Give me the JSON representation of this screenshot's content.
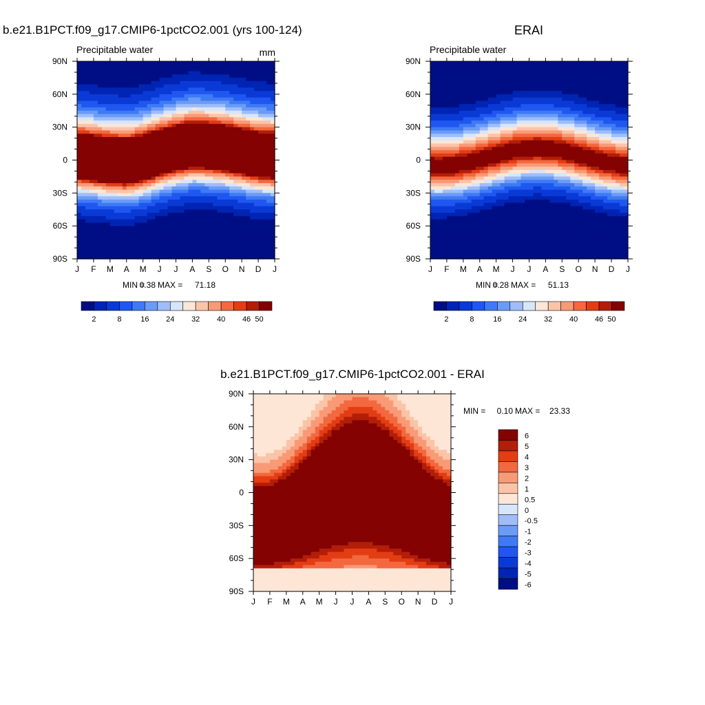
{
  "chart_data": [
    {
      "type": "heatmap",
      "id": "model",
      "title": "b.e21.B1PCT.f09_g17.CMIP6-1pctCO2.001 (yrs 100-124)",
      "left_label": "Precipitable water",
      "units": "mm",
      "x_tick_labels": [
        "J",
        "F",
        "M",
        "A",
        "M",
        "J",
        "J",
        "A",
        "S",
        "O",
        "N",
        "D",
        "J"
      ],
      "y_tick_labels": [
        "90N",
        "60N",
        "30N",
        "0",
        "30S",
        "60S",
        "90S"
      ],
      "ylim": [
        -90,
        90
      ],
      "stats": {
        "min_label": "MIN =",
        "min": "0.38",
        "max_label": "MAX =",
        "max": "71.18"
      },
      "contour_levels": [
        2,
        4,
        8,
        12,
        16,
        20,
        24,
        28,
        32,
        36,
        40,
        44,
        46,
        48,
        50
      ],
      "colorbar_labels": [
        "2",
        "8",
        "16",
        "24",
        "32",
        "40",
        "46",
        "50"
      ],
      "features": {
        "equator_max_lat_by_month": [
          2,
          0,
          -2,
          -3,
          0,
          5,
          9,
          12,
          11,
          9,
          6,
          3,
          2
        ],
        "tropical_peak": 71.18,
        "polar_min": 0.38
      }
    },
    {
      "type": "heatmap",
      "id": "obs",
      "title": "ERAI",
      "left_label": "Precipitable water",
      "x_tick_labels": [
        "J",
        "F",
        "M",
        "A",
        "M",
        "J",
        "J",
        "A",
        "S",
        "O",
        "N",
        "D",
        "J"
      ],
      "y_tick_labels": [
        "90N",
        "60N",
        "30N",
        "0",
        "30S",
        "60S",
        "90S"
      ],
      "ylim": [
        -90,
        90
      ],
      "stats": {
        "min_label": "MIN =",
        "min": "0.28",
        "max_label": "MAX =",
        "max": "51.13"
      },
      "contour_levels": [
        2,
        4,
        8,
        12,
        16,
        20,
        24,
        28,
        32,
        36,
        40,
        44,
        46,
        48,
        50
      ],
      "colorbar_labels": [
        "2",
        "8",
        "16",
        "24",
        "32",
        "40",
        "46",
        "50"
      ],
      "features": {
        "tropical_peak": 51.13,
        "polar_min": 0.28
      }
    },
    {
      "type": "heatmap",
      "id": "diff",
      "title": "b.e21.B1PCT.f09_g17.CMIP6-1pctCO2.001 - ERAI",
      "x_tick_labels": [
        "J",
        "F",
        "M",
        "A",
        "M",
        "J",
        "J",
        "A",
        "S",
        "O",
        "N",
        "D",
        "J"
      ],
      "y_tick_labels": [
        "90N",
        "60N",
        "30N",
        "0",
        "30S",
        "60S",
        "90S"
      ],
      "ylim": [
        -90,
        90
      ],
      "stats": {
        "min_label": "MIN =",
        "min": "0.10",
        "max_label": "MAX =",
        "max": "23.33"
      },
      "contour_levels": [
        -6,
        -5,
        -4,
        -3,
        -2,
        -1,
        -0.5,
        0,
        0.5,
        1,
        2,
        3,
        4,
        5,
        6
      ],
      "colorbar_labels": [
        "6",
        "5",
        "4",
        "3",
        "2",
        "1",
        "0.5",
        "0",
        "-0.5",
        "-1",
        "-2",
        "-3",
        "-4",
        "-5",
        "-6"
      ]
    }
  ],
  "colors": {
    "ramp": [
      "#000e85",
      "#0024b3",
      "#0a3ad6",
      "#1f57f0",
      "#3f7af5",
      "#6a9bf7",
      "#a0bdf9",
      "#d6e6fb",
      "#fde6d6",
      "#fbc4a8",
      "#f99a76",
      "#f3683f",
      "#e33d14",
      "#b21e08",
      "#840202"
    ],
    "diff_ramp": [
      "#000e85",
      "#0024b3",
      "#0a3ad6",
      "#1f57f0",
      "#3f7af5",
      "#6a9bf7",
      "#a0bdf9",
      "#d6e6fb",
      "#fde6d6",
      "#fbc4a8",
      "#f99a76",
      "#f3683f",
      "#e33d14",
      "#b21e08",
      "#840202"
    ]
  }
}
